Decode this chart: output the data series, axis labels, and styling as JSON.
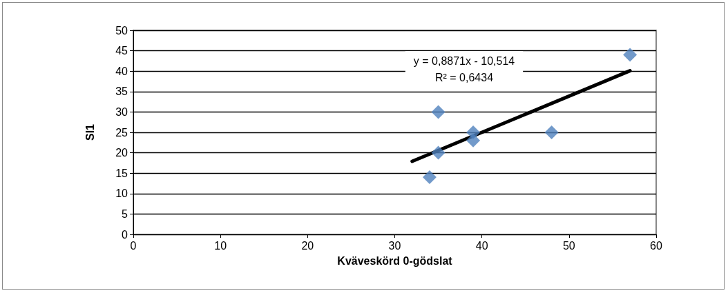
{
  "chart_data": {
    "type": "scatter",
    "xlabel": "Kväveskörd 0-gödslat",
    "ylabel": "SI1",
    "annotations": [
      "y = 0,8871x - 10,514",
      "R² = 0,6434"
    ],
    "series": [
      {
        "color": "#4f81bd",
        "x": [
          34,
          35,
          35,
          39,
          39,
          48,
          57
        ],
        "values": [
          14,
          30,
          20,
          25,
          23,
          25,
          44
        ]
      },
      {
        "type": "line",
        "color": "#000000",
        "marker": "none",
        "x": [
          32,
          57
        ],
        "values": [
          17.9,
          40.1
        ]
      }
    ],
    "xlim": [
      0,
      60
    ],
    "xticks": [
      0,
      10,
      20,
      30,
      40,
      50,
      60
    ],
    "ylim": [
      0,
      50
    ],
    "yticks": [
      0,
      5,
      10,
      15,
      20,
      25,
      30,
      35,
      40,
      45,
      50
    ],
    "grid": "y",
    "marker": "diamond"
  }
}
